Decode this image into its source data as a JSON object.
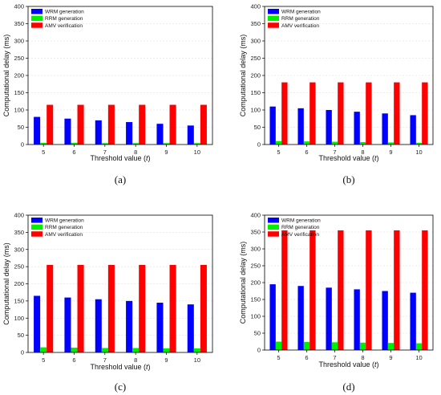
{
  "chart_data": [
    {
      "type": "bar",
      "caption": "(a)",
      "xlabel_text": "Threshold value (",
      "xlabel_var": "t",
      "xlabel_close": ")",
      "ylabel": "Computational delay (ms)",
      "categories": [
        "5",
        "6",
        "7",
        "8",
        "9",
        "10"
      ],
      "ylim": [
        0,
        400
      ],
      "yticks": [
        "0",
        "50",
        "100",
        "150",
        "200",
        "250",
        "300",
        "350",
        "400"
      ],
      "grid": true,
      "legend_position": "top-left",
      "series": [
        {
          "name": "WRM generation",
          "color": "#0000ff",
          "values": [
            80,
            75,
            70,
            65,
            60,
            55
          ]
        },
        {
          "name": "RRM generation",
          "color": "#00ee00",
          "values": [
            5,
            5,
            4,
            4,
            4,
            4
          ]
        },
        {
          "name": "AMV verification",
          "color": "#ff0000",
          "values": [
            115,
            115,
            115,
            115,
            115,
            115
          ]
        }
      ]
    },
    {
      "type": "bar",
      "caption": "(b)",
      "xlabel_text": "Threshold value (",
      "xlabel_var": "t",
      "xlabel_close": ")",
      "ylabel": "Computational delay (ms)",
      "categories": [
        "5",
        "6",
        "7",
        "8",
        "9",
        "10"
      ],
      "ylim": [
        0,
        400
      ],
      "yticks": [
        "0",
        "50",
        "100",
        "150",
        "200",
        "250",
        "300",
        "350",
        "400"
      ],
      "grid": true,
      "legend_position": "top-left",
      "series": [
        {
          "name": "WRM generation",
          "color": "#0000ff",
          "values": [
            110,
            105,
            100,
            95,
            90,
            85
          ]
        },
        {
          "name": "RRM generation",
          "color": "#00ee00",
          "values": [
            10,
            9,
            8,
            7,
            6,
            5
          ]
        },
        {
          "name": "AMV verification",
          "color": "#ff0000",
          "values": [
            180,
            180,
            180,
            180,
            180,
            180
          ]
        }
      ]
    },
    {
      "type": "bar",
      "caption": "(c)",
      "xlabel_text": "Threshold value (",
      "xlabel_var": "t",
      "xlabel_close": ")",
      "ylabel": "Computational delay (ms)",
      "categories": [
        "5",
        "6",
        "7",
        "8",
        "9",
        "10"
      ],
      "ylim": [
        0,
        400
      ],
      "yticks": [
        "0",
        "50",
        "100",
        "150",
        "200",
        "250",
        "300",
        "350",
        "400"
      ],
      "grid": true,
      "legend_position": "top-left",
      "series": [
        {
          "name": "WRM generation",
          "color": "#0000ff",
          "values": [
            165,
            160,
            155,
            150,
            145,
            140
          ]
        },
        {
          "name": "RRM generation",
          "color": "#00ee00",
          "values": [
            15,
            14,
            13,
            13,
            12,
            12
          ]
        },
        {
          "name": "AMV verification",
          "color": "#ff0000",
          "values": [
            255,
            255,
            255,
            255,
            255,
            255
          ]
        }
      ]
    },
    {
      "type": "bar",
      "caption": "(d)",
      "xlabel_text": "Threshold value (",
      "xlabel_var": "t",
      "xlabel_close": ")",
      "ylabel": "Computational delay (ms)",
      "categories": [
        "5",
        "6",
        "7",
        "8",
        "9",
        "10"
      ],
      "ylim": [
        0,
        400
      ],
      "yticks": [
        "0",
        "50",
        "100",
        "150",
        "200",
        "250",
        "300",
        "350",
        "400"
      ],
      "grid": true,
      "legend_position": "top-left",
      "series": [
        {
          "name": "WRM generation",
          "color": "#0000ff",
          "values": [
            195,
            190,
            185,
            180,
            175,
            170
          ]
        },
        {
          "name": "RRM generation",
          "color": "#00ee00",
          "values": [
            25,
            24,
            23,
            22,
            21,
            20
          ]
        },
        {
          "name": "AMV verification",
          "color": "#ff0000",
          "values": [
            355,
            355,
            355,
            355,
            355,
            355
          ]
        }
      ]
    }
  ]
}
